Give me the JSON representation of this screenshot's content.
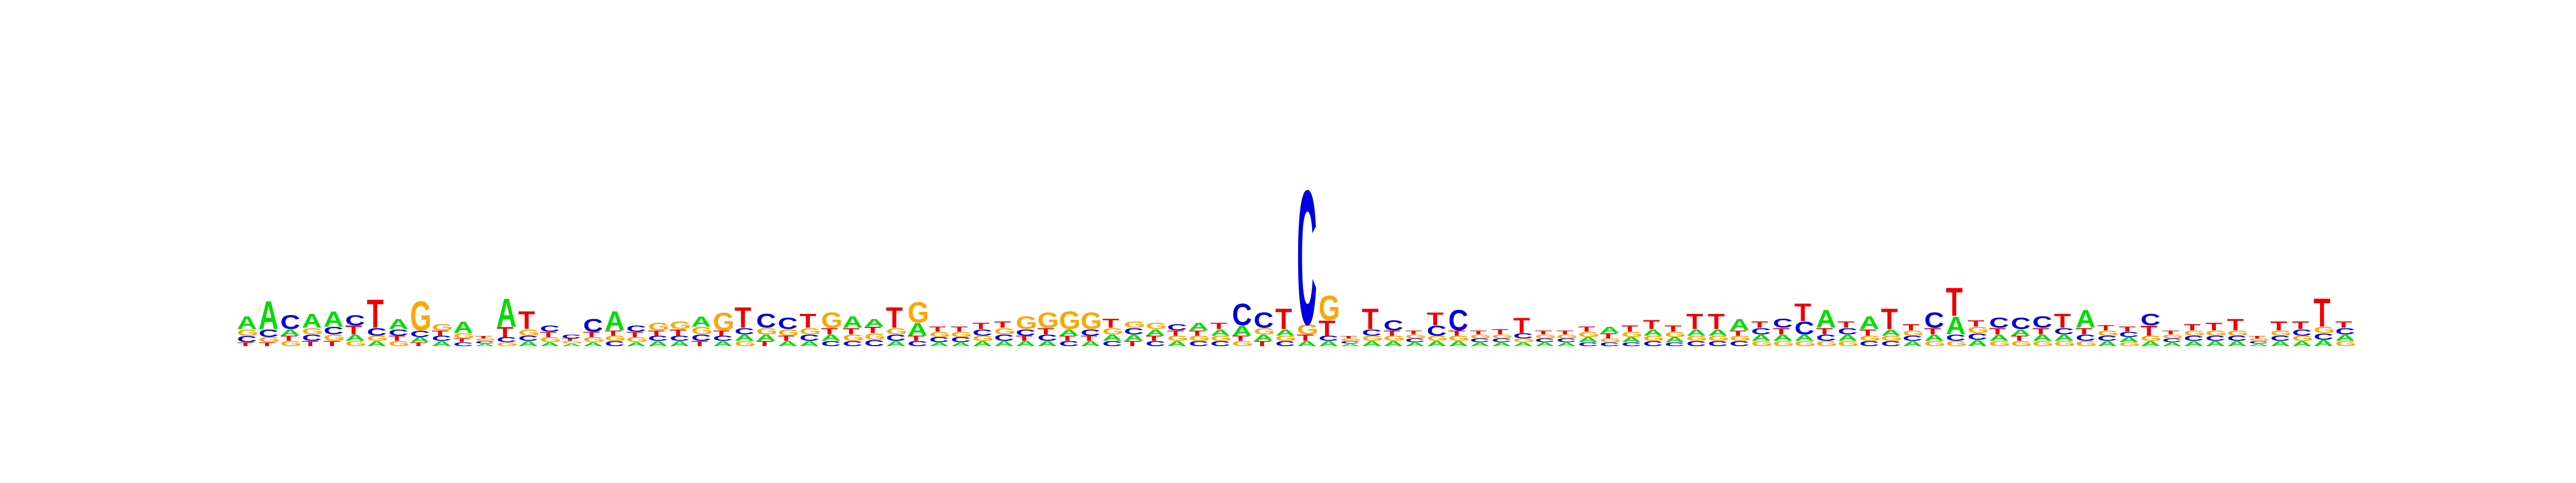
{
  "chart_data": {
    "type": "sequence-logo",
    "alphabet": [
      "A",
      "C",
      "G",
      "T"
    ],
    "colors": {
      "A": "#00dd00",
      "C": "#0000dd",
      "G": "#ffa500",
      "T": "#ee0000"
    },
    "axes_visible": false,
    "ylim_bits": [
      0,
      2
    ],
    "columns": [
      {
        "A": 0.1,
        "C": 0.05,
        "G": 0.05,
        "T": 0.03
      },
      {
        "A": 0.22,
        "C": 0.06,
        "G": 0.04,
        "T": 0.03
      },
      {
        "A": 0.05,
        "C": 0.11,
        "G": 0.04,
        "T": 0.04
      },
      {
        "A": 0.11,
        "C": 0.05,
        "G": 0.05,
        "T": 0.04
      },
      {
        "A": 0.12,
        "C": 0.06,
        "G": 0.05,
        "T": 0.04
      },
      {
        "A": 0.05,
        "C": 0.08,
        "G": 0.04,
        "T": 0.07
      },
      {
        "A": 0.04,
        "C": 0.06,
        "G": 0.04,
        "T": 0.22
      },
      {
        "A": 0.08,
        "C": 0.05,
        "G": 0.04,
        "T": 0.04
      },
      {
        "A": 0.04,
        "C": 0.05,
        "G": 0.23,
        "T": 0.03
      },
      {
        "A": 0.04,
        "C": 0.04,
        "G": 0.05,
        "T": 0.04
      },
      {
        "A": 0.09,
        "C": 0.03,
        "G": 0.04,
        "T": 0.03
      },
      {
        "A": 0.02,
        "C": 0.02,
        "G": 0.02,
        "T": 0.02
      },
      {
        "A": 0.22,
        "C": 0.04,
        "G": 0.03,
        "T": 0.08
      },
      {
        "A": 0.04,
        "C": 0.04,
        "G": 0.05,
        "T": 0.14
      },
      {
        "A": 0.03,
        "C": 0.05,
        "G": 0.04,
        "T": 0.04
      },
      {
        "A": 0.02,
        "C": 0.03,
        "G": 0.02,
        "T": 0.02
      },
      {
        "A": 0.03,
        "C": 0.1,
        "G": 0.04,
        "T": 0.04
      },
      {
        "A": 0.15,
        "C": 0.04,
        "G": 0.04,
        "T": 0.04
      },
      {
        "A": 0.03,
        "C": 0.05,
        "G": 0.04,
        "T": 0.04
      },
      {
        "A": 0.04,
        "C": 0.04,
        "G": 0.06,
        "T": 0.04
      },
      {
        "A": 0.04,
        "C": 0.04,
        "G": 0.06,
        "T": 0.05
      },
      {
        "A": 0.08,
        "C": 0.05,
        "G": 0.06,
        "T": 0.04
      },
      {
        "A": 0.04,
        "C": 0.04,
        "G": 0.14,
        "T": 0.04
      },
      {
        "A": 0.05,
        "C": 0.05,
        "G": 0.04,
        "T": 0.16
      },
      {
        "A": 0.05,
        "C": 0.11,
        "G": 0.05,
        "T": 0.04
      },
      {
        "A": 0.04,
        "C": 0.09,
        "G": 0.05,
        "T": 0.04
      },
      {
        "A": 0.04,
        "C": 0.05,
        "G": 0.05,
        "T": 0.11
      },
      {
        "A": 0.05,
        "C": 0.04,
        "G": 0.12,
        "T": 0.05
      },
      {
        "A": 0.09,
        "C": 0.04,
        "G": 0.05,
        "T": 0.05
      },
      {
        "A": 0.06,
        "C": 0.05,
        "G": 0.05,
        "T": 0.05
      },
      {
        "A": 0.04,
        "C": 0.05,
        "G": 0.05,
        "T": 0.16
      },
      {
        "A": 0.1,
        "C": 0.04,
        "G": 0.16,
        "T": 0.04
      },
      {
        "A": 0.03,
        "C": 0.04,
        "G": 0.04,
        "T": 0.04
      },
      {
        "A": 0.03,
        "C": 0.04,
        "G": 0.04,
        "T": 0.04
      },
      {
        "A": 0.04,
        "C": 0.05,
        "G": 0.04,
        "T": 0.05
      },
      {
        "A": 0.04,
        "C": 0.05,
        "G": 0.05,
        "T": 0.05
      },
      {
        "A": 0.04,
        "C": 0.05,
        "G": 0.1,
        "T": 0.04
      },
      {
        "A": 0.04,
        "C": 0.05,
        "G": 0.12,
        "T": 0.05
      },
      {
        "A": 0.05,
        "C": 0.04,
        "G": 0.14,
        "T": 0.04
      },
      {
        "A": 0.04,
        "C": 0.05,
        "G": 0.13,
        "T": 0.04
      },
      {
        "A": 0.05,
        "C": 0.04,
        "G": 0.05,
        "T": 0.07
      },
      {
        "A": 0.05,
        "C": 0.05,
        "G": 0.05,
        "T": 0.04
      },
      {
        "A": 0.05,
        "C": 0.04,
        "G": 0.05,
        "T": 0.04
      },
      {
        "A": 0.04,
        "C": 0.05,
        "G": 0.04,
        "T": 0.04
      },
      {
        "A": 0.06,
        "C": 0.04,
        "G": 0.04,
        "T": 0.04
      },
      {
        "A": 0.05,
        "C": 0.04,
        "G": 0.04,
        "T": 0.05
      },
      {
        "A": 0.08,
        "C": 0.17,
        "G": 0.04,
        "T": 0.04
      },
      {
        "A": 0.05,
        "C": 0.12,
        "G": 0.05,
        "T": 0.04
      },
      {
        "A": 0.05,
        "C": 0.04,
        "G": 0.04,
        "T": 0.16
      },
      {
        "A": 0.04,
        "C": 1.05,
        "G": 0.08,
        "T": 0.05
      },
      {
        "A": 0.04,
        "C": 0.04,
        "G": 0.19,
        "T": 0.12
      },
      {
        "A": 0.02,
        "C": 0.02,
        "G": 0.02,
        "T": 0.02
      },
      {
        "A": 0.04,
        "C": 0.05,
        "G": 0.04,
        "T": 0.16
      },
      {
        "A": 0.04,
        "C": 0.08,
        "G": 0.04,
        "T": 0.04
      },
      {
        "A": 0.03,
        "C": 0.03,
        "G": 0.03,
        "T": 0.03
      },
      {
        "A": 0.04,
        "C": 0.08,
        "G": 0.04,
        "T": 0.1
      },
      {
        "A": 0.04,
        "C": 0.16,
        "G": 0.04,
        "T": 0.04
      },
      {
        "A": 0.03,
        "C": 0.03,
        "G": 0.03,
        "T": 0.03
      },
      {
        "A": 0.03,
        "C": 0.03,
        "G": 0.03,
        "T": 0.04
      },
      {
        "A": 0.03,
        "C": 0.04,
        "G": 0.03,
        "T": 0.12
      },
      {
        "A": 0.03,
        "C": 0.03,
        "G": 0.03,
        "T": 0.03
      },
      {
        "A": 0.03,
        "C": 0.03,
        "G": 0.03,
        "T": 0.03
      },
      {
        "A": 0.04,
        "C": 0.03,
        "G": 0.04,
        "T": 0.04
      },
      {
        "A": 0.05,
        "C": 0.03,
        "G": 0.03,
        "T": 0.04
      },
      {
        "A": 0.04,
        "C": 0.03,
        "G": 0.04,
        "T": 0.05
      },
      {
        "A": 0.05,
        "C": 0.04,
        "G": 0.04,
        "T": 0.07
      },
      {
        "A": 0.04,
        "C": 0.03,
        "G": 0.04,
        "T": 0.05
      },
      {
        "A": 0.05,
        "C": 0.04,
        "G": 0.04,
        "T": 0.12
      },
      {
        "A": 0.05,
        "C": 0.04,
        "G": 0.04,
        "T": 0.12
      },
      {
        "A": 0.09,
        "C": 0.04,
        "G": 0.04,
        "T": 0.04
      },
      {
        "A": 0.05,
        "C": 0.05,
        "G": 0.04,
        "T": 0.05
      },
      {
        "A": 0.05,
        "C": 0.07,
        "G": 0.04,
        "T": 0.05
      },
      {
        "A": 0.05,
        "C": 0.1,
        "G": 0.04,
        "T": 0.14
      },
      {
        "A": 0.14,
        "C": 0.05,
        "G": 0.04,
        "T": 0.05
      },
      {
        "A": 0.05,
        "C": 0.05,
        "G": 0.04,
        "T": 0.05
      },
      {
        "A": 0.1,
        "C": 0.04,
        "G": 0.04,
        "T": 0.05
      },
      {
        "A": 0.05,
        "C": 0.04,
        "G": 0.04,
        "T": 0.16
      },
      {
        "A": 0.04,
        "C": 0.04,
        "G": 0.04,
        "T": 0.05
      },
      {
        "A": 0.05,
        "C": 0.12,
        "G": 0.04,
        "T": 0.05
      },
      {
        "A": 0.14,
        "C": 0.05,
        "G": 0.04,
        "T": 0.22
      },
      {
        "A": 0.05,
        "C": 0.05,
        "G": 0.05,
        "T": 0.05
      },
      {
        "A": 0.05,
        "C": 0.08,
        "G": 0.04,
        "T": 0.05
      },
      {
        "A": 0.05,
        "C": 0.09,
        "G": 0.04,
        "T": 0.04
      },
      {
        "A": 0.05,
        "C": 0.09,
        "G": 0.04,
        "T": 0.05
      },
      {
        "A": 0.05,
        "C": 0.05,
        "G": 0.04,
        "T": 0.11
      },
      {
        "A": 0.14,
        "C": 0.05,
        "G": 0.04,
        "T": 0.05
      },
      {
        "A": 0.04,
        "C": 0.04,
        "G": 0.04,
        "T": 0.04
      },
      {
        "A": 0.04,
        "C": 0.04,
        "G": 0.03,
        "T": 0.04
      },
      {
        "A": 0.04,
        "C": 0.09,
        "G": 0.04,
        "T": 0.08
      },
      {
        "A": 0.03,
        "C": 0.03,
        "G": 0.03,
        "T": 0.03
      },
      {
        "A": 0.04,
        "C": 0.04,
        "G": 0.04,
        "T": 0.05
      },
      {
        "A": 0.04,
        "C": 0.04,
        "G": 0.04,
        "T": 0.06
      },
      {
        "A": 0.04,
        "C": 0.04,
        "G": 0.04,
        "T": 0.09
      },
      {
        "A": 0.02,
        "C": 0.02,
        "G": 0.02,
        "T": 0.02
      },
      {
        "A": 0.04,
        "C": 0.04,
        "G": 0.04,
        "T": 0.07
      },
      {
        "A": 0.04,
        "C": 0.05,
        "G": 0.04,
        "T": 0.06
      },
      {
        "A": 0.05,
        "C": 0.05,
        "G": 0.05,
        "T": 0.22
      },
      {
        "A": 0.05,
        "C": 0.05,
        "G": 0.04,
        "T": 0.05
      }
    ]
  }
}
